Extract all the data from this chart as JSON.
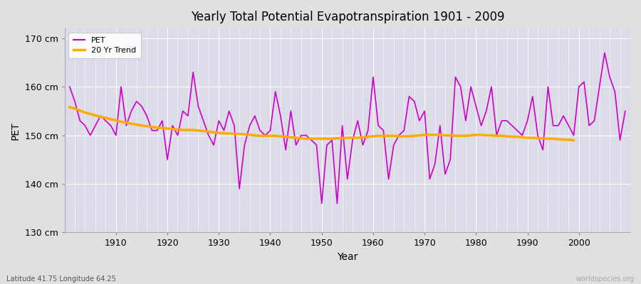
{
  "title": "Yearly Total Potential Evapotranspiration 1901 - 2009",
  "xlabel": "Year",
  "ylabel": "PET",
  "bottom_left": "Latitude 41.75 Longitude 64.25",
  "bottom_right": "worldspecies.org",
  "ylim": [
    130,
    172
  ],
  "yticks": [
    130,
    140,
    150,
    160,
    170
  ],
  "ytick_labels": [
    "130 cm",
    "140 cm",
    "150 cm",
    "160 cm",
    "170 cm"
  ],
  "xlim": [
    1900,
    2010
  ],
  "pet_color": "#cc00cc",
  "trend_color": "#ffaa00",
  "fig_bg_color": "#e0e0e0",
  "plot_bg_color": "#dcdce8",
  "grid_color": "#ffffff",
  "legend_pet": "PET",
  "legend_trend": "20 Yr Trend",
  "years": [
    1901,
    1902,
    1903,
    1904,
    1905,
    1906,
    1907,
    1908,
    1909,
    1910,
    1911,
    1912,
    1913,
    1914,
    1915,
    1916,
    1917,
    1918,
    1919,
    1920,
    1921,
    1922,
    1923,
    1924,
    1925,
    1926,
    1927,
    1928,
    1929,
    1930,
    1931,
    1932,
    1933,
    1934,
    1935,
    1936,
    1937,
    1938,
    1939,
    1940,
    1941,
    1942,
    1943,
    1944,
    1945,
    1946,
    1947,
    1948,
    1949,
    1950,
    1951,
    1952,
    1953,
    1954,
    1955,
    1956,
    1957,
    1958,
    1959,
    1960,
    1961,
    1962,
    1963,
    1964,
    1965,
    1966,
    1967,
    1968,
    1969,
    1970,
    1971,
    1972,
    1973,
    1974,
    1975,
    1976,
    1977,
    1978,
    1979,
    1980,
    1981,
    1982,
    1983,
    1984,
    1985,
    1986,
    1987,
    1988,
    1989,
    1990,
    1991,
    1992,
    1993,
    1994,
    1995,
    1996,
    1997,
    1998,
    1999,
    2000,
    2001,
    2002,
    2003,
    2004,
    2005,
    2006,
    2007,
    2008,
    2009
  ],
  "pet_values": [
    160,
    157,
    153,
    152,
    150,
    152,
    154,
    153,
    152,
    150,
    160,
    152,
    155,
    157,
    156,
    154,
    151,
    151,
    153,
    145,
    152,
    150,
    155,
    154,
    163,
    156,
    153,
    150,
    148,
    153,
    151,
    155,
    152,
    139,
    148,
    152,
    154,
    151,
    150,
    151,
    159,
    154,
    147,
    155,
    148,
    150,
    150,
    149,
    148,
    136,
    148,
    149,
    136,
    152,
    141,
    149,
    153,
    148,
    151,
    162,
    152,
    151,
    141,
    148,
    150,
    151,
    158,
    157,
    153,
    155,
    141,
    144,
    152,
    142,
    145,
    162,
    160,
    153,
    160,
    156,
    152,
    155,
    160,
    150,
    153,
    153,
    152,
    151,
    150,
    153,
    158,
    150,
    147,
    160,
    152,
    152,
    154,
    152,
    150,
    160,
    161,
    152,
    153,
    160,
    167,
    162,
    159,
    149,
    155
  ],
  "trend_years": [
    1901,
    1902,
    1903,
    1904,
    1905,
    1906,
    1907,
    1908,
    1909,
    1910,
    1911,
    1912,
    1913,
    1914,
    1915,
    1916,
    1917,
    1918,
    1919,
    1920,
    1921,
    1922,
    1923,
    1924,
    1925,
    1926,
    1927,
    1928,
    1929,
    1930,
    1931,
    1932,
    1933,
    1934,
    1935,
    1936,
    1937,
    1938,
    1939,
    1940,
    1941,
    1942,
    1943,
    1944,
    1945,
    1946,
    1947,
    1948,
    1949,
    1950,
    1951,
    1952,
    1953,
    1954,
    1955,
    1956,
    1957,
    1958,
    1959,
    1960,
    1961,
    1962,
    1963,
    1964,
    1965,
    1966,
    1967,
    1968,
    1969,
    1970,
    1971,
    1972,
    1973,
    1974,
    1975,
    1976,
    1977,
    1978,
    1979,
    1980,
    1981,
    1982,
    1983,
    1984,
    1985,
    1986,
    1987,
    1988,
    1989,
    1990,
    1991,
    1992,
    1993,
    1994,
    1995,
    1996,
    1997,
    1998,
    1999
  ],
  "trend_values": [
    155.8,
    155.5,
    155.1,
    154.7,
    154.4,
    154.1,
    153.8,
    153.6,
    153.3,
    153.1,
    152.8,
    152.6,
    152.4,
    152.2,
    152.0,
    151.9,
    151.7,
    151.6,
    151.5,
    151.4,
    151.3,
    151.2,
    151.1,
    151.1,
    151.1,
    151.0,
    150.9,
    150.8,
    150.6,
    150.5,
    150.4,
    150.4,
    150.3,
    150.3,
    150.2,
    150.1,
    150.0,
    149.9,
    149.9,
    149.9,
    149.9,
    149.8,
    149.7,
    149.6,
    149.5,
    149.4,
    149.3,
    149.3,
    149.3,
    149.3,
    149.3,
    149.3,
    149.4,
    149.4,
    149.5,
    149.5,
    149.5,
    149.6,
    149.7,
    149.8,
    149.9,
    149.9,
    149.9,
    149.9,
    149.8,
    149.8,
    149.8,
    149.9,
    150.0,
    150.1,
    150.1,
    150.1,
    150.1,
    150.0,
    150.0,
    149.9,
    149.9,
    149.9,
    150.0,
    150.1,
    150.1,
    150.0,
    150.0,
    149.9,
    149.9,
    149.8,
    149.7,
    149.7,
    149.6,
    149.5,
    149.5,
    149.4,
    149.4,
    149.3,
    149.3,
    149.2,
    149.1,
    149.1,
    149.0
  ]
}
